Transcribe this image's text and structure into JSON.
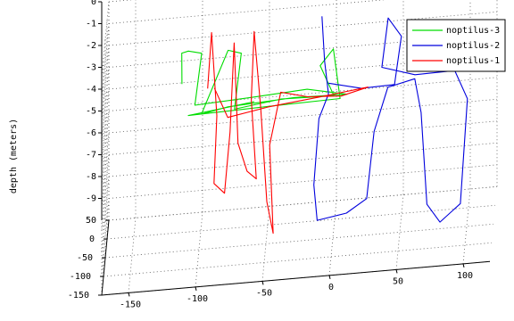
{
  "chart_data": {
    "type": "line3d",
    "zlabel": "depth (meters)",
    "z_ticks": [
      "0",
      "-1",
      "-2",
      "-3",
      "-4",
      "-5",
      "-6",
      "-7",
      "-8",
      "-9"
    ],
    "x_ticks": [
      "-150",
      "-100",
      "-50",
      "0",
      "50",
      "100"
    ],
    "y_ticks": [
      "50",
      "0",
      "-50",
      "-100",
      "-150"
    ],
    "xlim": [
      -170,
      120
    ],
    "ylim": [
      -150,
      50
    ],
    "zlim": [
      -10,
      0
    ],
    "grid": true,
    "legend_position": "top-right",
    "series": [
      {
        "name": "noptilus-3",
        "color": "#00dd00",
        "points": [
          [
            -115,
            35,
            -3.8
          ],
          [
            -115,
            30,
            -2.3
          ],
          [
            -110,
            28,
            -2.2
          ],
          [
            -100,
            25,
            -2.3
          ],
          [
            -105,
            22,
            -4.6
          ],
          [
            -60,
            -5,
            -4.0
          ],
          [
            -20,
            -20,
            -3.6
          ],
          [
            10,
            -25,
            -3.9
          ],
          [
            -30,
            -10,
            -4.1
          ],
          [
            -80,
            10,
            -4.6
          ],
          [
            -100,
            20,
            -5.0
          ],
          [
            -80,
            15,
            -2.1
          ],
          [
            -70,
            10,
            -2.2
          ],
          [
            -75,
            8,
            -4.7
          ],
          [
            -40,
            -5,
            -4.2
          ],
          [
            0,
            -20,
            -4.0
          ],
          [
            -10,
            -30,
            -2.4
          ],
          [
            0,
            -35,
            -1.6
          ],
          [
            5,
            -35,
            -3.9
          ],
          [
            -50,
            -10,
            -4.4
          ],
          [
            -110,
            25,
            -5.1
          ],
          [
            -60,
            0,
            -4.3
          ]
        ]
      },
      {
        "name": "noptilus-2",
        "color": "#0000dd",
        "points": [
          [
            -10,
            20,
            -1.0
          ],
          [
            -8,
            18,
            -3.0
          ],
          [
            -5,
            15,
            -4.5
          ],
          [
            -12,
            10,
            -5.5
          ],
          [
            -15,
            -20,
            -8.0
          ],
          [
            -12,
            -40,
            -9.3
          ],
          [
            10,
            -45,
            -9.0
          ],
          [
            25,
            -40,
            -8.5
          ],
          [
            30,
            -20,
            -5.8
          ],
          [
            40,
            -10,
            -4.0
          ],
          [
            60,
            -5,
            -3.8
          ],
          [
            65,
            -15,
            -5.2
          ],
          [
            70,
            -40,
            -9.0
          ],
          [
            80,
            -50,
            -9.7
          ],
          [
            95,
            -40,
            -9.1
          ],
          [
            100,
            -30,
            -4.5
          ],
          [
            90,
            -10,
            -3.5
          ],
          [
            60,
            0,
            -3.7
          ],
          [
            35,
            10,
            -3.4
          ],
          [
            40,
            0,
            -1.0
          ],
          [
            50,
            -5,
            -1.8
          ],
          [
            45,
            -10,
            -3.9
          ],
          [
            20,
            5,
            -4.2
          ],
          [
            -5,
            15,
            -4.0
          ]
        ]
      },
      {
        "name": "noptilus-1",
        "color": "#ff0000",
        "points": [
          [
            -95,
            5,
            -3.6
          ],
          [
            -92,
            2,
            -1.0
          ],
          [
            -88,
            0,
            -4.8
          ],
          [
            -90,
            -5,
            -7.8
          ],
          [
            -82,
            -10,
            -8.2
          ],
          [
            -78,
            -5,
            -5.5
          ],
          [
            -75,
            -2,
            -1.5
          ],
          [
            -72,
            -8,
            -6.0
          ],
          [
            -65,
            -15,
            -7.2
          ],
          [
            -58,
            -20,
            -7.5
          ],
          [
            -62,
            -10,
            -4.0
          ],
          [
            -60,
            -5,
            -1.0
          ],
          [
            -55,
            -8,
            -4.5
          ],
          [
            -50,
            -25,
            -8.5
          ],
          [
            -45,
            -35,
            -9.8
          ],
          [
            -48,
            -20,
            -6.0
          ],
          [
            -40,
            -10,
            -3.8
          ],
          [
            -20,
            -5,
            -4.2
          ],
          [
            5,
            -5,
            -4.3
          ],
          [
            25,
            -5,
            -4.0
          ],
          [
            -10,
            -2,
            -4.3
          ],
          [
            -50,
            0,
            -4.6
          ],
          [
            -80,
            5,
            -5.0
          ],
          [
            -90,
            5,
            -3.6
          ]
        ]
      }
    ]
  }
}
